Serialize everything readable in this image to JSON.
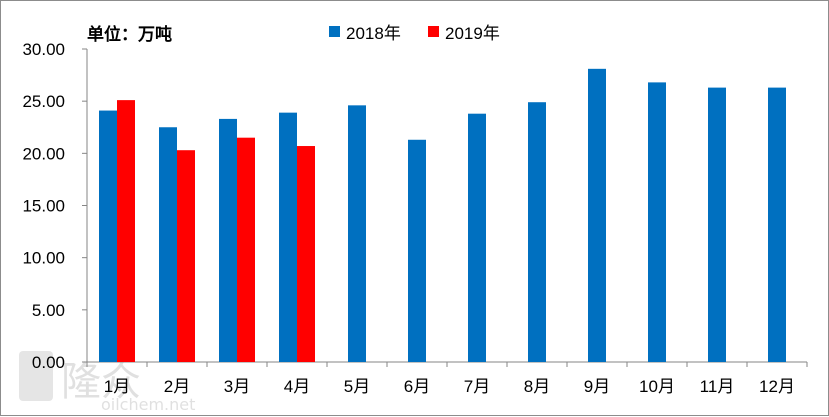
{
  "chart_data": {
    "type": "bar",
    "unit_label": "单位：万吨",
    "categories": [
      "1月",
      "2月",
      "3月",
      "4月",
      "5月",
      "6月",
      "7月",
      "8月",
      "9月",
      "10月",
      "11月",
      "12月"
    ],
    "series": [
      {
        "name": "2018年",
        "color": "#0070c0",
        "values": [
          24.1,
          22.5,
          23.3,
          23.9,
          24.6,
          21.3,
          23.8,
          24.9,
          28.1,
          26.8,
          26.3,
          26.3
        ]
      },
      {
        "name": "2019年",
        "color": "#ff0000",
        "values": [
          25.1,
          20.3,
          21.5,
          20.7,
          null,
          null,
          null,
          null,
          null,
          null,
          null,
          null
        ]
      }
    ],
    "yticks": [
      "0.00",
      "5.00",
      "10.00",
      "15.00",
      "20.00",
      "25.00",
      "30.00"
    ],
    "ylim": [
      0,
      30
    ],
    "grid": false,
    "legend_position": "top-center"
  },
  "watermark": {
    "brand": "隆众",
    "url": "oilchem.net"
  }
}
